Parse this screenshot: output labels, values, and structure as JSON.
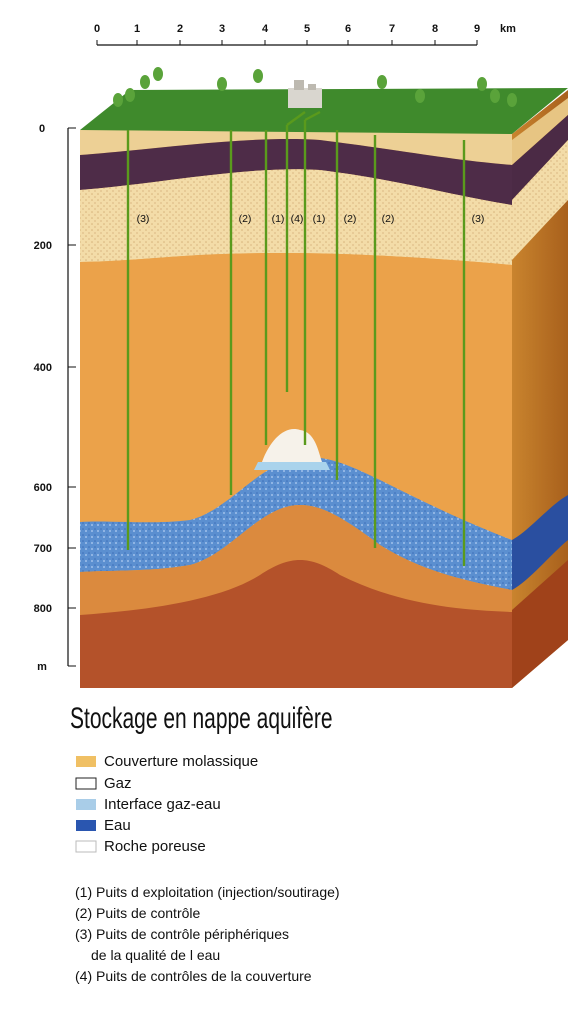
{
  "scale": {
    "ticks": [
      0,
      1,
      2,
      3,
      4,
      5,
      6,
      7,
      8,
      9
    ],
    "unit": "km"
  },
  "depth": {
    "ticks": [
      0,
      200,
      400,
      600,
      700,
      800
    ],
    "unit": "m"
  },
  "wells": [
    "(3)",
    "(2)",
    "(1)",
    "(4)",
    "(1)",
    "(2)",
    "(2)",
    "(3)"
  ],
  "title": "Stockage en nappe aquifère",
  "legend": [
    "Couverture molassique",
    "Gaz",
    "Interface gaz-eau",
    "Eau",
    "Roche poreuse"
  ],
  "notes": [
    [
      "(1) Puits d exploitation (injection/soutirage)"
    ],
    [
      "(2) Puits de contrôle"
    ],
    [
      "(3) Puits de contrôle périphériques",
      "de la qualité de l eau"
    ],
    [
      "(4) Puits de contrôles de la couverture"
    ]
  ]
}
